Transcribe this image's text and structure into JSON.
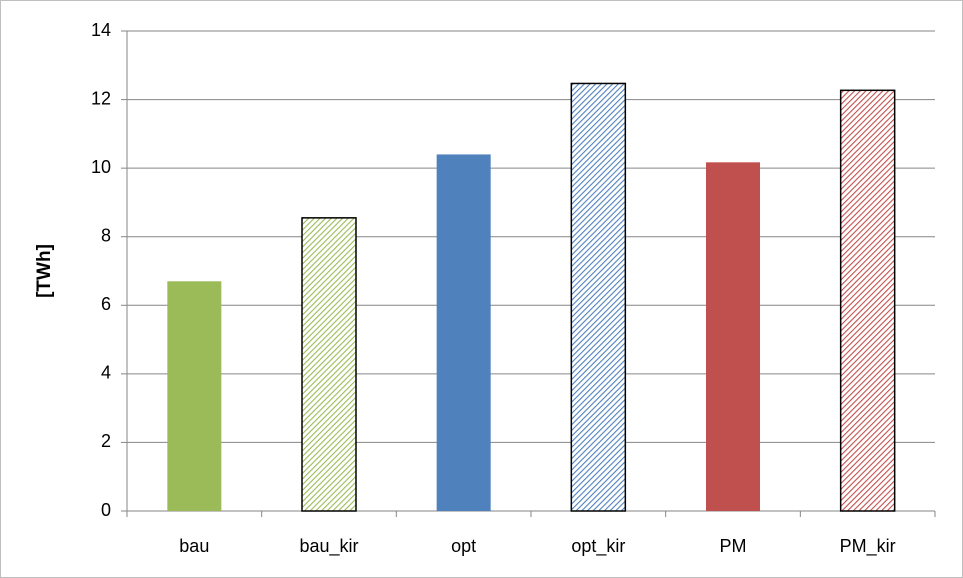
{
  "chart_data": {
    "type": "bar",
    "y_label": "[TWh]",
    "categories": [
      "bau",
      "bau_kir",
      "opt",
      "opt_kir",
      "PM",
      "PM_kir"
    ],
    "values": [
      6.7,
      8.55,
      10.4,
      12.47,
      10.17,
      12.27
    ],
    "colors": [
      "#9bbb59",
      "#9bbb59",
      "#4f81bd",
      "#4f81bd",
      "#c0504d",
      "#c0504d"
    ],
    "hatched": [
      false,
      true,
      false,
      true,
      false,
      true
    ],
    "ylim": [
      0,
      14
    ],
    "yticks": [
      0,
      2,
      4,
      6,
      8,
      10,
      12,
      14
    ],
    "grid": true
  }
}
